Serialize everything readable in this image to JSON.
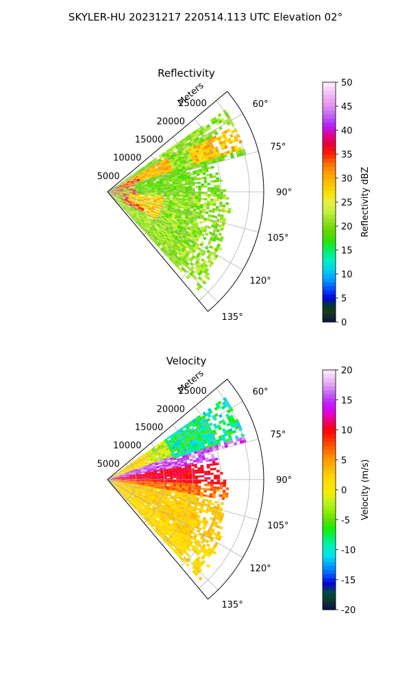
{
  "figure": {
    "title": "SKYLER-HU  20231217  220514.113 UTC Elevation 02°"
  },
  "chart_data": [
    {
      "type": "heatmap",
      "title": "Reflectivity",
      "projection": "polar sector (PPI)",
      "range_label": "Meters",
      "range_ticks": [
        5000,
        10000,
        15000,
        20000,
        25000
      ],
      "range_max": 27500,
      "azimuth_ticks": [
        "60°",
        "75°",
        "90°",
        "105°",
        "120°",
        "135°"
      ],
      "azimuth_tick_values": [
        60,
        75,
        90,
        105,
        120,
        135
      ],
      "azimuth_range": [
        50,
        140
      ],
      "colorbar": {
        "label": "Reflectivity dBZ",
        "min": 0,
        "max": 50,
        "ticks": [
          0,
          5,
          10,
          15,
          20,
          25,
          30,
          35,
          40,
          45,
          50
        ]
      },
      "field_features": [
        {
          "description": "widespread 18-24 dBZ echoes",
          "az_range": [
            52,
            138
          ],
          "r_range": [
            0,
            25000
          ]
        },
        {
          "description": "yellow-orange band 27-32 dBZ",
          "az_range": [
            60,
            75
          ],
          "r_range": [
            3000,
            12000
          ]
        },
        {
          "description": "35-40 dBZ red cores",
          "az_range": [
            64,
            118
          ],
          "r_range": [
            500,
            6000
          ]
        }
      ],
      "grid": true
    },
    {
      "type": "heatmap",
      "title": "Velocity",
      "projection": "polar sector (PPI)",
      "range_label": "Meters",
      "range_ticks": [
        5000,
        10000,
        15000,
        20000,
        25000
      ],
      "range_max": 27500,
      "azimuth_ticks": [
        "60°",
        "75°",
        "90°",
        "105°",
        "120°",
        "135°"
      ],
      "azimuth_tick_values": [
        60,
        75,
        90,
        105,
        120,
        135
      ],
      "azimuth_range": [
        50,
        140
      ],
      "colorbar": {
        "label": "Velocity (m/s)",
        "min": -20,
        "max": 20,
        "ticks": [
          -20,
          -15,
          -10,
          -5,
          0,
          5,
          10,
          15,
          20
        ]
      },
      "field_features": [
        {
          "description": "green/cyan inbound -5 to -12 m/s",
          "az_range": [
            52,
            72
          ],
          "r_range": [
            12000,
            26000
          ]
        },
        {
          "description": "magenta/purple 14-18 m/s band",
          "az_range": [
            70,
            80
          ],
          "r_range": [
            0,
            22000
          ]
        },
        {
          "description": "red outbound 9-11 m/s",
          "az_range": [
            78,
            92
          ],
          "r_range": [
            0,
            17000
          ]
        },
        {
          "description": "orange 5-8 m/s",
          "az_range": [
            88,
            100
          ],
          "r_range": [
            5000,
            20000
          ]
        },
        {
          "description": "yellow 1-4 m/s",
          "az_range": [
            92,
            138
          ],
          "r_range": [
            0,
            24000
          ]
        }
      ],
      "grid": true
    }
  ],
  "colors": {
    "text": "#000000",
    "grid": "#b0b0b0",
    "background": "#ffffff"
  }
}
